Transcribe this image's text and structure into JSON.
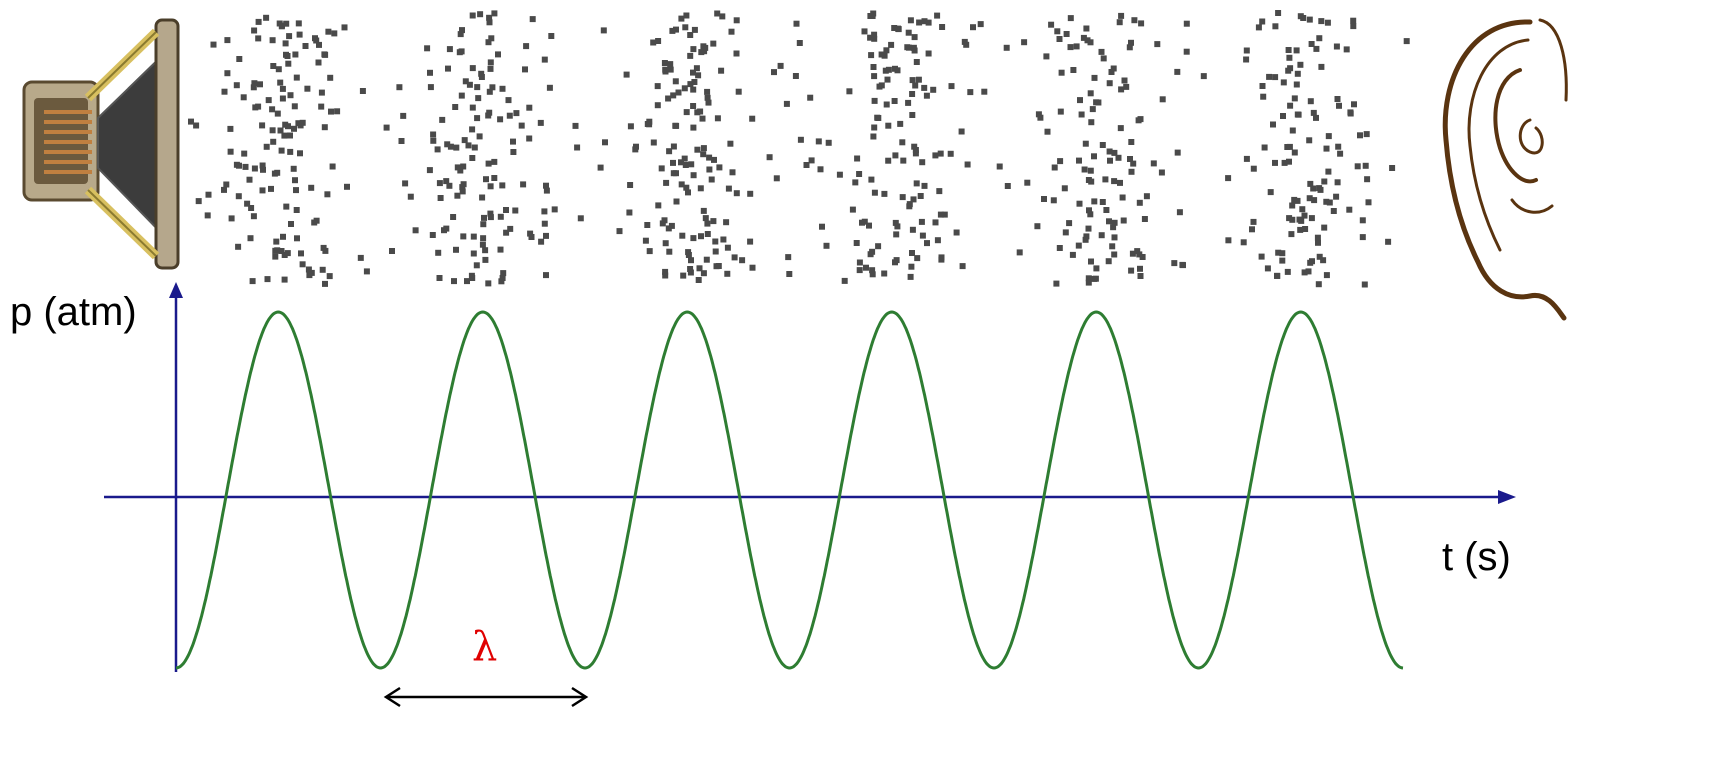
{
  "diagram": {
    "y_axis_label": "p (atm)",
    "x_axis_label": "t (s)",
    "wavelength_symbol": "λ",
    "source_icon": "loudspeaker-icon",
    "receiver_icon": "ear-icon",
    "compression_band_count": 6,
    "wave_cycles": 6
  },
  "colors": {
    "axis": "#1a1a8c",
    "wave": "#2e7d32",
    "particles": "#4a4a4a",
    "wavelength_label": "#e00000",
    "arrow": "#000000"
  }
}
